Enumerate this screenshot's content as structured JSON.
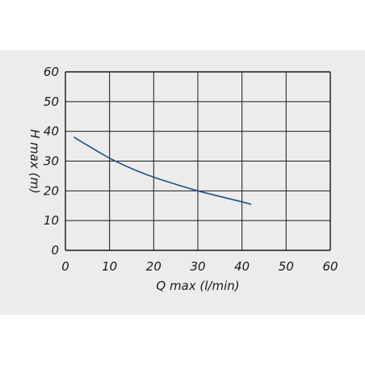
{
  "chart_data": {
    "type": "line",
    "xlabel": "Q max (l/min)",
    "ylabel": "H max (m)",
    "xlim": [
      0,
      60
    ],
    "ylim": [
      0,
      60
    ],
    "x_ticks": [
      "0",
      "10",
      "20",
      "30",
      "40",
      "50",
      "60"
    ],
    "y_ticks": [
      "0",
      "10",
      "20",
      "30",
      "40",
      "50",
      "60"
    ],
    "grid": true,
    "series": [
      {
        "x": [
          2,
          5,
          10,
          15,
          20,
          25,
          30,
          35,
          40,
          42
        ],
        "y": [
          38,
          35.3,
          31,
          27.5,
          24.6,
          22.2,
          20,
          18.1,
          16.3,
          15.5
        ],
        "color": "#1f4f8a"
      }
    ],
    "colors": {
      "panel": "#ececec",
      "grid": "#1a1a1a",
      "curve": "#1f4f8a"
    }
  }
}
